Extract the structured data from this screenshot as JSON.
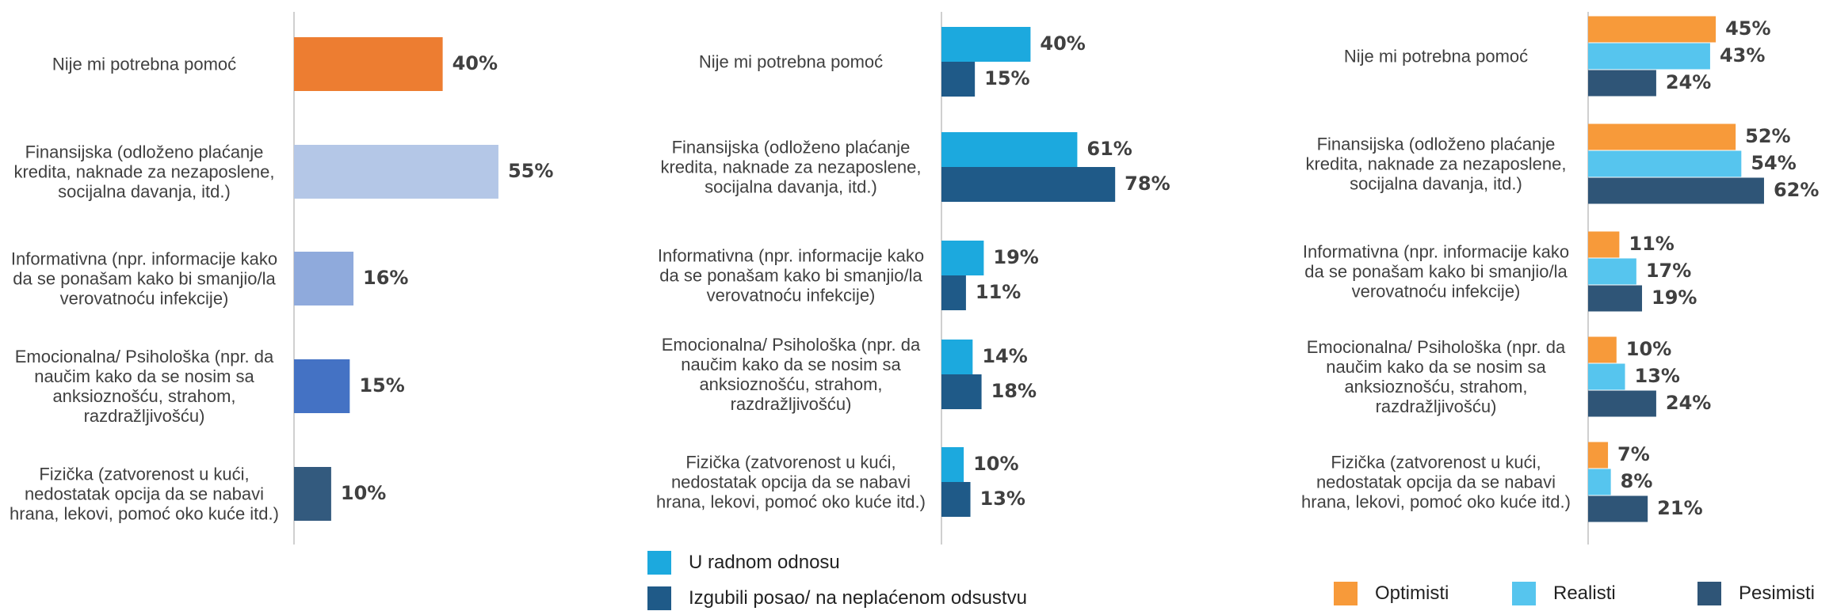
{
  "chart_data": [
    {
      "type": "bar",
      "orientation": "horizontal",
      "categories": [
        "Nije mi potrebna pomoć",
        "Finansijska (odloženo plaćanje kredita, naknade za nezaposlene, socijalna davanja, itd.)",
        "Informativna (npr. informacije kako da se ponašam kako bi smanjio/la verovatnoću infekcije)",
        "Emocionalna/ Psihološka (npr. da naučim kako da se nosim sa anksioznošću, strahom, razdražljivošću)",
        "Fizička (zatvorenost u kući, nedostatak opcija da se nabavi hrana, lekovi, pomoć oko kuće itd.)"
      ],
      "values": [
        40,
        55,
        16,
        15,
        10
      ],
      "value_labels": [
        "40%",
        "55%",
        "16%",
        "15%",
        "10%"
      ],
      "colors": [
        "#ed7d31",
        "#b4c7e7",
        "#8faadc",
        "#4472c4",
        "#335a7e"
      ]
    },
    {
      "type": "bar",
      "orientation": "horizontal",
      "legend": "bottom",
      "categories": [
        "Nije mi potrebna pomoć",
        "Finansijska (odloženo plaćanje kredita, naknade za nezaposlene, socijalna davanja, itd.)",
        "Informativna (npr. informacije kako da se ponašam kako bi smanjio/la verovatnoću infekcije)",
        "Emocionalna/ Psihološka (npr. da naučim kako da se nosim sa anksioznošću, strahom, razdražljivošću)",
        "Fizička (zatvorenost u kući, nedostatak opcija da se nabavi hrana, lekovi, pomoć oko kuće itd.)"
      ],
      "series": [
        {
          "name": "U radnom odnosu",
          "color": "#1ca9de",
          "values": [
            40,
            61,
            19,
            14,
            10
          ],
          "value_labels": [
            "40%",
            "61%",
            "19%",
            "14%",
            "10%"
          ]
        },
        {
          "name": "Izgubili posao/ na neplaćenom odsustvu",
          "color": "#1f5a88",
          "values": [
            15,
            78,
            11,
            18,
            13
          ],
          "value_labels": [
            "15%",
            "78%",
            "11%",
            "18%",
            "13%"
          ]
        }
      ]
    },
    {
      "type": "bar",
      "orientation": "horizontal",
      "legend": "bottom",
      "categories": [
        "Nije mi potrebna pomoć",
        "Finansijska (odloženo plaćanje kredita, naknade za nezaposlene, socijalna davanja, itd.)",
        "Informativna (npr. informacije kako da se ponašam kako bi smanjio/la verovatnoću infekcije)",
        "Emocionalna/ Psihološka (npr. da naučim kako da se nosim sa anksioznošću, strahom, razdražljivošću)",
        "Fizička (zatvorenost u kući, nedostatak opcija da se nabavi hrana, lekovi, pomoć oko kuće itd.)"
      ],
      "series": [
        {
          "name": "Optimisti",
          "color": "#f79a3a",
          "values": [
            45,
            52,
            11,
            10,
            7
          ],
          "value_labels": [
            "45%",
            "52%",
            "11%",
            "10%",
            "7%"
          ]
        },
        {
          "name": "Realisti",
          "color": "#56c5ee",
          "values": [
            43,
            54,
            17,
            13,
            8
          ],
          "value_labels": [
            "43%",
            "54%",
            "17%",
            "13%",
            "8%"
          ]
        },
        {
          "name": "Pesimisti",
          "color": "#2f5577",
          "values": [
            24,
            62,
            19,
            24,
            21
          ],
          "value_labels": [
            "24%",
            "62%",
            "19%",
            "24%",
            "21%"
          ]
        }
      ]
    }
  ]
}
